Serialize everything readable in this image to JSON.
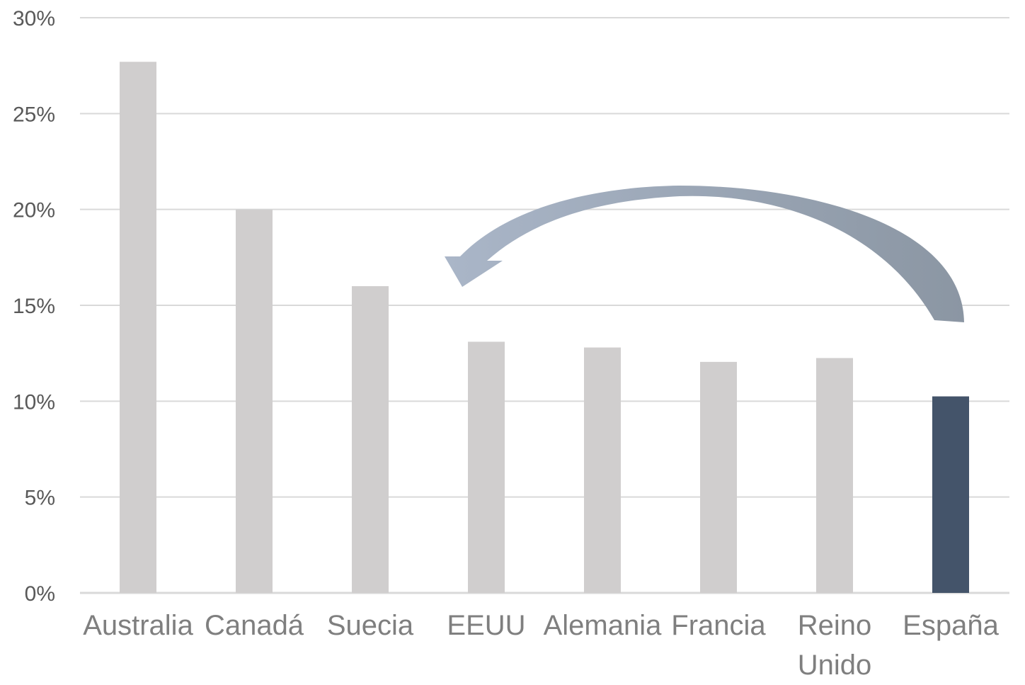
{
  "chart_data": {
    "type": "bar",
    "categories": [
      "Australia",
      "Canadá",
      "Suecia",
      "EEUU",
      "Alemania",
      "Francia",
      "Reino Unido",
      "España"
    ],
    "category_lines": [
      [
        "Australia"
      ],
      [
        "Canadá"
      ],
      [
        "Suecia"
      ],
      [
        "EEUU"
      ],
      [
        "Alemania"
      ],
      [
        "Francia"
      ],
      [
        "Reino",
        "Unido"
      ],
      [
        "España"
      ]
    ],
    "values": [
      27.7,
      20.0,
      16.0,
      13.1,
      12.8,
      12.05,
      12.25,
      10.25
    ],
    "ylim": [
      0,
      30
    ],
    "yticks": [
      0,
      5,
      10,
      15,
      20,
      25,
      30
    ],
    "ytick_labels": [
      "0%",
      "5%",
      "10%",
      "15%",
      "20%",
      "25%",
      "30%"
    ],
    "grid": true,
    "colors": {
      "bar": "#d0cece",
      "highlight_bar": "#44546a",
      "arrow_start": "#8b96a3",
      "arrow_end": "#aab6c8"
    },
    "highlight_index": 7,
    "annotation": {
      "type": "curved-arrow",
      "from_category": "España",
      "to_category": "EEUU",
      "description_shown": false
    }
  }
}
